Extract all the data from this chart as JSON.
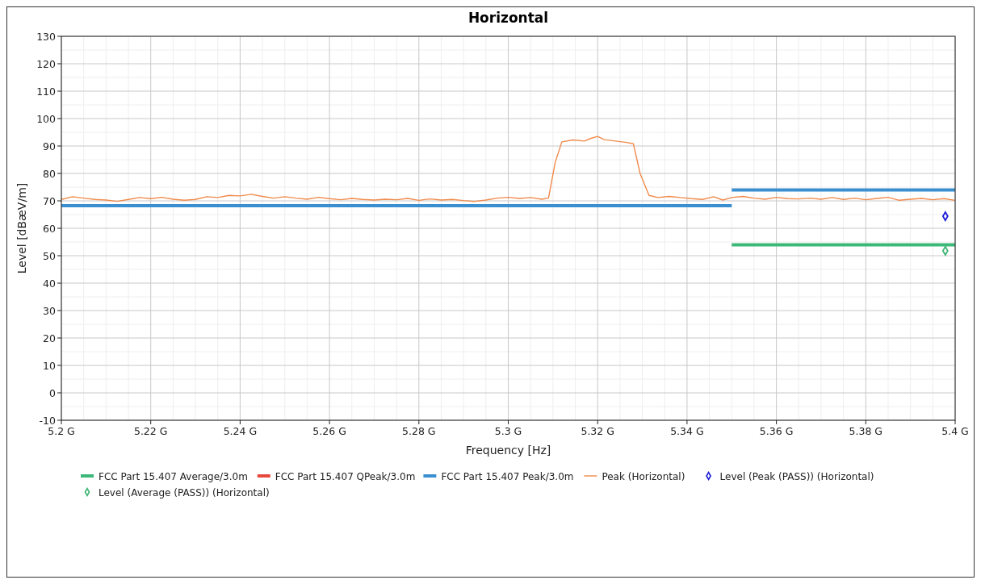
{
  "chart_data": {
    "type": "line",
    "title": "Horizontal",
    "xlabel": "Frequency [Hz]",
    "ylabel": "Level [dBæV/m]",
    "xlim": [
      5.2,
      5.4
    ],
    "xticks": [
      {
        "value": 5.2,
        "label": "5.2 G"
      },
      {
        "value": 5.22,
        "label": "5.22 G"
      },
      {
        "value": 5.24,
        "label": "5.24 G"
      },
      {
        "value": 5.26,
        "label": "5.26 G"
      },
      {
        "value": 5.28,
        "label": "5.28 G"
      },
      {
        "value": 5.3,
        "label": "5.3 G"
      },
      {
        "value": 5.32,
        "label": "5.32 G"
      },
      {
        "value": 5.34,
        "label": "5.34 G"
      },
      {
        "value": 5.36,
        "label": "5.36 G"
      },
      {
        "value": 5.38,
        "label": "5.38 G"
      },
      {
        "value": 5.4,
        "label": "5.4 G"
      }
    ],
    "ylim": [
      -10,
      130
    ],
    "yticks": [
      -10,
      0,
      10,
      20,
      30,
      40,
      50,
      60,
      70,
      80,
      90,
      100,
      110,
      120,
      130
    ],
    "grid": true,
    "legend": "bottom",
    "series": [
      {
        "name": "FCC Part 15.407 Average/3.0m",
        "type": "step",
        "color": "#3cb878",
        "x": [
          5.35,
          5.4
        ],
        "values": [
          54,
          54
        ]
      },
      {
        "name": "FCC Part 15.407 QPeak/3.0m",
        "type": "step",
        "color": "#e8483c"
      },
      {
        "name": "FCC Part 15.407 Peak/3.0m",
        "type": "step",
        "color": "#3a8fd0",
        "x": [
          5.2,
          5.35,
          5.35,
          5.4
        ],
        "values": [
          68.2,
          68.2,
          74,
          74
        ]
      },
      {
        "name": "Peak (Horizontal)",
        "color": "#f08a4b",
        "x": [
          5.2,
          5.2025,
          5.205,
          5.2075,
          5.21,
          5.2125,
          5.215,
          5.2175,
          5.22,
          5.2225,
          5.225,
          5.2275,
          5.23,
          5.2325,
          5.235,
          5.2375,
          5.24,
          5.2425,
          5.245,
          5.2475,
          5.25,
          5.2525,
          5.255,
          5.2575,
          5.26,
          5.2625,
          5.265,
          5.2675,
          5.27,
          5.2725,
          5.275,
          5.2775,
          5.28,
          5.2825,
          5.285,
          5.2875,
          5.29,
          5.2925,
          5.295,
          5.2975,
          5.3,
          5.3025,
          5.305,
          5.3075,
          5.309,
          5.3105,
          5.312,
          5.3145,
          5.317,
          5.3185,
          5.32,
          5.3215,
          5.324,
          5.3265,
          5.328,
          5.3295,
          5.3315,
          5.3335,
          5.336,
          5.3385,
          5.341,
          5.3435,
          5.346,
          5.348,
          5.35,
          5.3525,
          5.355,
          5.3575,
          5.36,
          5.3625,
          5.365,
          5.3675,
          5.37,
          5.3725,
          5.375,
          5.3775,
          5.38,
          5.3825,
          5.385,
          5.3875,
          5.39,
          5.3925,
          5.395,
          5.3975,
          5.4
        ],
        "values": [
          70.5,
          71.5,
          71,
          70.5,
          70.3,
          69.8,
          70.5,
          71.2,
          70.8,
          71.3,
          70.6,
          70.2,
          70.5,
          71.5,
          71.2,
          72,
          71.8,
          72.4,
          71.6,
          71,
          71.5,
          71,
          70.6,
          71.3,
          70.8,
          70.4,
          70.9,
          70.5,
          70.3,
          70.6,
          70.4,
          70.9,
          70.2,
          70.7,
          70.3,
          70.5,
          70.1,
          69.8,
          70.3,
          71,
          71.3,
          70.9,
          71.2,
          70.6,
          71,
          84,
          91.5,
          92.2,
          91.8,
          92.8,
          93.5,
          92.3,
          91.8,
          91.3,
          90.8,
          80,
          72,
          71.2,
          71.6,
          71.2,
          70.8,
          70.5,
          71.5,
          70.3,
          71.2,
          71.6,
          71,
          70.6,
          71.3,
          70.8,
          70.7,
          71,
          70.6,
          71.2,
          70.5,
          71,
          70.4,
          70.9,
          71.3,
          70.2,
          70.6,
          70.9,
          70.4,
          70.8,
          70.2
        ]
      },
      {
        "name": "Level (Peak (PASS)) (Horizontal)",
        "type": "scatter",
        "marker": "diamond",
        "color": "#1a1ad8",
        "x": [
          5.3978
        ],
        "values": [
          64.4
        ]
      },
      {
        "name": "Level (Average (PASS)) (Horizontal)",
        "type": "scatter",
        "marker": "diamond",
        "color": "#3cb371",
        "x": [
          5.3978
        ],
        "values": [
          51.8
        ]
      }
    ]
  }
}
